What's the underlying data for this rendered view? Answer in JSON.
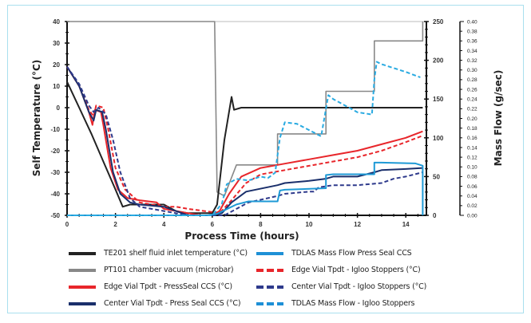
{
  "chart_data": {
    "type": "line",
    "title": "",
    "xlabel": "Process Time (hours)",
    "ylabel": "Self Temperature (°C)",
    "y2label": "Mass Flow (g/sec)",
    "xlim": [
      0,
      15
    ],
    "ylim": [
      -50,
      40
    ],
    "y2lim": [
      0,
      250
    ],
    "y3lim": [
      0.0,
      0.4
    ],
    "grid": false,
    "legend_position": "bottom",
    "x_ticks": [
      "0",
      "2",
      "4",
      "6",
      "8",
      "10",
      "12",
      "14"
    ],
    "y_ticks": [
      "40",
      "30",
      "20",
      "10",
      "0",
      "-10",
      "-20",
      "-30",
      "-40",
      "-50"
    ],
    "y2_ticks": [
      "250",
      "200",
      "150",
      "100",
      "50",
      "0"
    ],
    "y3_ticks": [
      "0.40",
      "0.38",
      "0.36",
      "0.34",
      "0.32",
      "0.30",
      "0.28",
      "0.26",
      "0.24",
      "0.22",
      "0.20",
      "0.18",
      "0.16",
      "0.14",
      "0.12",
      "0.10",
      "0.08",
      "0.06",
      "0.04",
      "0.02",
      "0.00"
    ],
    "series": [
      {
        "name": "TE201 shelf fluid inlet temperature (°C)",
        "color": "#222222",
        "dash": "solid",
        "axis": "left",
        "points": [
          [
            0,
            12
          ],
          [
            0.5,
            0
          ],
          [
            1,
            -12
          ],
          [
            1.5,
            -25
          ],
          [
            2,
            -38
          ],
          [
            2.3,
            -46
          ],
          [
            2.6,
            -45
          ],
          [
            3,
            -45
          ],
          [
            4,
            -45
          ],
          [
            4.5,
            -48
          ],
          [
            5,
            -49
          ],
          [
            6,
            -49
          ],
          [
            6.2,
            -45
          ],
          [
            6.5,
            -15
          ],
          [
            6.8,
            5
          ],
          [
            6.9,
            -1
          ],
          [
            7.2,
            0
          ],
          [
            8,
            0
          ],
          [
            10,
            0
          ],
          [
            12,
            0
          ],
          [
            14,
            0
          ],
          [
            14.7,
            0
          ]
        ]
      },
      {
        "name": "PT101 chamber vacuum (microbar)",
        "color": "#888888",
        "dash": "solid",
        "axis": "right",
        "points": [
          [
            0,
            250
          ],
          [
            6.1,
            250
          ],
          [
            6.2,
            30
          ],
          [
            6.5,
            25
          ],
          [
            7,
            65
          ],
          [
            8.7,
            65
          ],
          [
            8.7,
            105
          ],
          [
            10.7,
            105
          ],
          [
            10.7,
            160
          ],
          [
            12.7,
            160
          ],
          [
            12.7,
            225
          ],
          [
            14.7,
            225
          ],
          [
            14.7,
            250
          ]
        ]
      },
      {
        "name": "Edge Vial Tpdt - PressSeal CCS (°C)",
        "color": "#e8262b",
        "dash": "solid",
        "axis": "left",
        "points": [
          [
            0,
            19
          ],
          [
            0.5,
            10
          ],
          [
            0.9,
            -2
          ],
          [
            1.05,
            -8
          ],
          [
            1.15,
            -1
          ],
          [
            1.4,
            -2
          ],
          [
            1.5,
            -8
          ],
          [
            1.8,
            -28
          ],
          [
            2.1,
            -38
          ],
          [
            2.5,
            -42
          ],
          [
            3,
            -43
          ],
          [
            3.7,
            -44
          ],
          [
            4,
            -47
          ],
          [
            5,
            -49
          ],
          [
            5.5,
            -50
          ],
          [
            6,
            -50
          ],
          [
            6.3,
            -48
          ],
          [
            6.7,
            -40
          ],
          [
            7.2,
            -32
          ],
          [
            8,
            -28
          ],
          [
            9,
            -26
          ],
          [
            10,
            -24
          ],
          [
            11,
            -22
          ],
          [
            12,
            -20
          ],
          [
            13,
            -17
          ],
          [
            14,
            -14
          ],
          [
            14.7,
            -11
          ]
        ]
      },
      {
        "name": "Center Vial Tpdt - Press Seal CCS (°C)",
        "color": "#1a2f6b",
        "dash": "solid",
        "axis": "left",
        "points": [
          [
            0,
            19
          ],
          [
            0.5,
            10
          ],
          [
            0.9,
            -2
          ],
          [
            1.1,
            -6
          ],
          [
            1.2,
            -1
          ],
          [
            1.45,
            -2
          ],
          [
            1.6,
            -10
          ],
          [
            1.9,
            -30
          ],
          [
            2.2,
            -40
          ],
          [
            2.6,
            -44
          ],
          [
            3,
            -45
          ],
          [
            4,
            -46
          ],
          [
            4.5,
            -48
          ],
          [
            5,
            -50
          ],
          [
            6,
            -50
          ],
          [
            6.4,
            -49
          ],
          [
            6.8,
            -44
          ],
          [
            7.4,
            -39
          ],
          [
            8.7,
            -36
          ],
          [
            9,
            -35
          ],
          [
            10,
            -34
          ],
          [
            10.7,
            -33
          ],
          [
            11,
            -32
          ],
          [
            12,
            -32
          ],
          [
            12.7,
            -30
          ],
          [
            13,
            -29
          ],
          [
            14,
            -28.5
          ],
          [
            14.7,
            -28
          ]
        ]
      },
      {
        "name": "TDLAS Mass Flow Press Seal CCS",
        "color": "#1e9ad6",
        "dash": "solid",
        "axis": "right",
        "points": [
          [
            0,
            0
          ],
          [
            5.8,
            0
          ],
          [
            6.2,
            2
          ],
          [
            6.6,
            8
          ],
          [
            7,
            14
          ],
          [
            7.5,
            18
          ],
          [
            8.7,
            18
          ],
          [
            8.8,
            32
          ],
          [
            9,
            33
          ],
          [
            10.7,
            35
          ],
          [
            10.7,
            52
          ],
          [
            11,
            53
          ],
          [
            12.7,
            53
          ],
          [
            12.7,
            68
          ],
          [
            13,
            68
          ],
          [
            14.4,
            67
          ],
          [
            14.7,
            64
          ],
          [
            14.7,
            0
          ]
        ]
      },
      {
        "name": "Edge Vial Tpdt - Igloo Stoppers (°C)",
        "color": "#e8262b",
        "dash": "dashed",
        "axis": "left",
        "points": [
          [
            0,
            19
          ],
          [
            0.5,
            10
          ],
          [
            0.9,
            -1
          ],
          [
            1.1,
            -4
          ],
          [
            1.2,
            1
          ],
          [
            1.5,
            0
          ],
          [
            1.7,
            -10
          ],
          [
            2,
            -28
          ],
          [
            2.4,
            -38
          ],
          [
            3,
            -44
          ],
          [
            4,
            -46
          ],
          [
            4.5,
            -46
          ],
          [
            5,
            -47
          ],
          [
            6,
            -48.5
          ],
          [
            6.3,
            -49
          ],
          [
            6.8,
            -43
          ],
          [
            7.4,
            -35
          ],
          [
            8,
            -31
          ],
          [
            9,
            -29
          ],
          [
            10,
            -27
          ],
          [
            11,
            -25
          ],
          [
            12,
            -23
          ],
          [
            13,
            -20
          ],
          [
            14,
            -16
          ],
          [
            14.7,
            -13
          ]
        ]
      },
      {
        "name": "Center Vial Tpdt - Igloo Stoppers (°C)",
        "color": "#2e3a8c",
        "dash": "dashed",
        "axis": "left",
        "points": [
          [
            0,
            19
          ],
          [
            0.5,
            11
          ],
          [
            0.9,
            1
          ],
          [
            1.1,
            -2
          ],
          [
            1.3,
            0
          ],
          [
            1.6,
            -3
          ],
          [
            1.9,
            -15
          ],
          [
            2.2,
            -30
          ],
          [
            2.6,
            -42
          ],
          [
            3,
            -46
          ],
          [
            4,
            -48
          ],
          [
            4.5,
            -49
          ],
          [
            5,
            -50
          ],
          [
            6,
            -50
          ],
          [
            6.5,
            -50
          ],
          [
            7,
            -47
          ],
          [
            7.5,
            -44
          ],
          [
            8.7,
            -41
          ],
          [
            9,
            -40
          ],
          [
            10,
            -39
          ],
          [
            10.2,
            -39
          ],
          [
            10.4,
            -37
          ],
          [
            11,
            -36
          ],
          [
            12,
            -36
          ],
          [
            13,
            -35
          ],
          [
            13.5,
            -33
          ],
          [
            14,
            -32
          ],
          [
            14.7,
            -30
          ]
        ]
      },
      {
        "name": "TDLAS Mass Flow - Igloo Stoppers",
        "color": "#29aae1",
        "dash": "dashed",
        "axis": "right",
        "points": [
          [
            0,
            0
          ],
          [
            6,
            0
          ],
          [
            6.4,
            15
          ],
          [
            6.6,
            40
          ],
          [
            7,
            47
          ],
          [
            7.5,
            45
          ],
          [
            8,
            50
          ],
          [
            8.3,
            48
          ],
          [
            8.6,
            55
          ],
          [
            8.8,
            100
          ],
          [
            9,
            120
          ],
          [
            9.5,
            118
          ],
          [
            10.5,
            102
          ],
          [
            10.8,
            155
          ],
          [
            11,
            150
          ],
          [
            12,
            133
          ],
          [
            12.6,
            130
          ],
          [
            12.7,
            175
          ],
          [
            12.8,
            198
          ],
          [
            13,
            195
          ],
          [
            14,
            185
          ],
          [
            14.6,
            178
          ]
        ]
      }
    ]
  },
  "legend": [
    {
      "label": "TE201 shelf fluid inlet temperature (°C)",
      "color": "#222222",
      "dash": "solid"
    },
    {
      "label": "TDLAS Mass Flow Press Seal CCS",
      "color": "#1e90d6",
      "dash": "solid"
    },
    {
      "label": "PT101 chamber vacuum (microbar)",
      "color": "#888888",
      "dash": "solid"
    },
    {
      "label": "Edge Vial Tpdt - Igloo Stoppers (°C)",
      "color": "#e8262b",
      "dash": "dashed"
    },
    {
      "label": "Edge Vial Tpdt - PressSeal CCS (°C)",
      "color": "#e8262b",
      "dash": "solid"
    },
    {
      "label": "Center Vial Tpdt - Igloo Stoppers (°C)",
      "color": "#2e3a8c",
      "dash": "dashed"
    },
    {
      "label": "Center Vial Tpdt - Press Seal CCS (°C)",
      "color": "#1a2f6b",
      "dash": "solid"
    },
    {
      "label": "TDLAS Mass Flow - Igloo Stoppers",
      "color": "#1e90d6",
      "dash": "dashed"
    }
  ],
  "frame_color": "#a9e0ee"
}
